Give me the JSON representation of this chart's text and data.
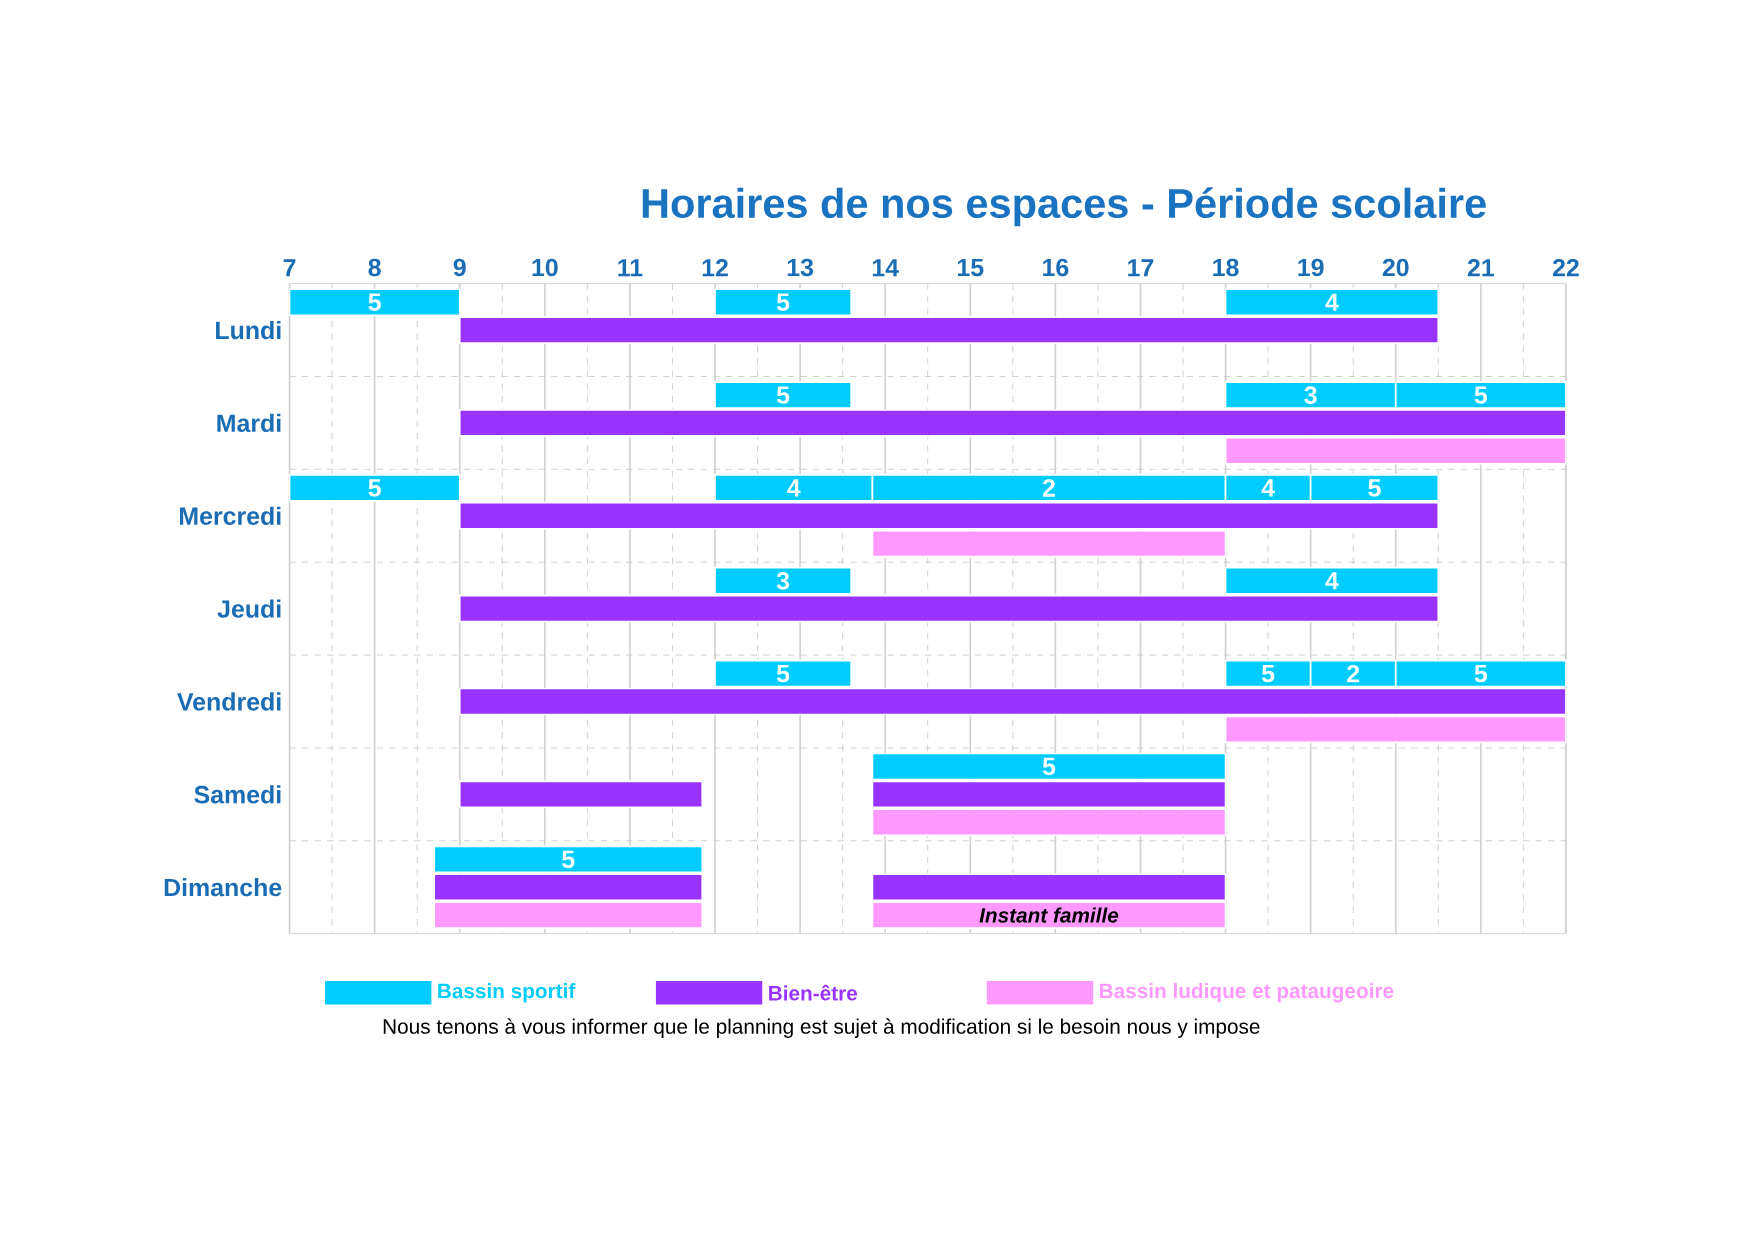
{
  "chart_data": {
    "type": "bar",
    "orientation": "horizontal",
    "title": "Horaires de nos espaces  -  Période scolaire",
    "categories": [
      "Lundi",
      "Mardi",
      "Mercredi",
      "Jeudi",
      "Vendredi",
      "Samedi",
      "Dimanche"
    ],
    "xlim": [
      7,
      22
    ],
    "xticks": [
      7,
      8,
      9,
      10,
      11,
      12,
      13,
      14,
      15,
      16,
      17,
      18,
      19,
      20,
      21,
      22
    ],
    "grid": "x",
    "legend": "bottom",
    "series": [
      {
        "name": "Bassin sportif",
        "color": "#00ccff",
        "base": [
          7,
          12,
          7,
          12,
          12,
          13.85,
          8.7
        ],
        "values": [
          2,
          1.6,
          2,
          1.6,
          1.6,
          4.15,
          3.15
        ]
      },
      {
        "color": "#00ccff",
        "base": [
          12,
          18,
          12,
          18,
          18,
          null,
          null
        ],
        "values": [
          1.6,
          2,
          1.85,
          2.5,
          1,
          null,
          null
        ]
      },
      {
        "color": "#00ccff",
        "base": [
          18,
          20,
          13.85,
          null,
          19,
          null,
          null
        ],
        "values": [
          2.5,
          2,
          4.15,
          null,
          1,
          null,
          null
        ]
      },
      {
        "color": "#00ccff",
        "base": [
          null,
          null,
          18,
          null,
          20,
          null,
          null
        ],
        "values": [
          null,
          null,
          1,
          null,
          2,
          null,
          null
        ]
      },
      {
        "color": "#00ccff",
        "base": [
          null,
          null,
          19,
          null,
          null,
          null,
          null
        ],
        "values": [
          null,
          null,
          1.5,
          null,
          null,
          null,
          null
        ]
      },
      {
        "name": "Bien-être",
        "color": "#9933ff",
        "base": [
          9,
          9,
          9,
          9,
          9,
          9,
          8.7
        ],
        "values": [
          11.5,
          13,
          11.5,
          11.5,
          13,
          2.85,
          3.15
        ]
      },
      {
        "color": "#9933ff",
        "base": [
          null,
          null,
          null,
          null,
          null,
          13.85,
          13.85
        ],
        "values": [
          null,
          null,
          null,
          null,
          null,
          4.15,
          4.15
        ]
      },
      {
        "name": "Bassin ludique et pataugeoire",
        "color": "#ff99ff",
        "base": [
          null,
          18,
          13.85,
          null,
          18,
          13.85,
          8.7
        ],
        "values": [
          null,
          4,
          4.15,
          null,
          4,
          4.15,
          3.15
        ]
      },
      {
        "color": "#ff99ff",
        "base": [
          null,
          null,
          null,
          null,
          null,
          null,
          13.85
        ],
        "values": [
          null,
          null,
          null,
          null,
          null,
          null,
          4.15
        ]
      }
    ],
    "annotations": [
      "5",
      "5",
      "4",
      "5",
      "3",
      "5",
      "5",
      "4",
      "2",
      "4",
      "5",
      "3",
      "4",
      "5",
      "5",
      "2",
      "5",
      "5",
      "5",
      "Instant famille",
      "Nous tenons à vous informer que le planning est sujet à modification si le besoin nous y impose"
    ]
  }
}
